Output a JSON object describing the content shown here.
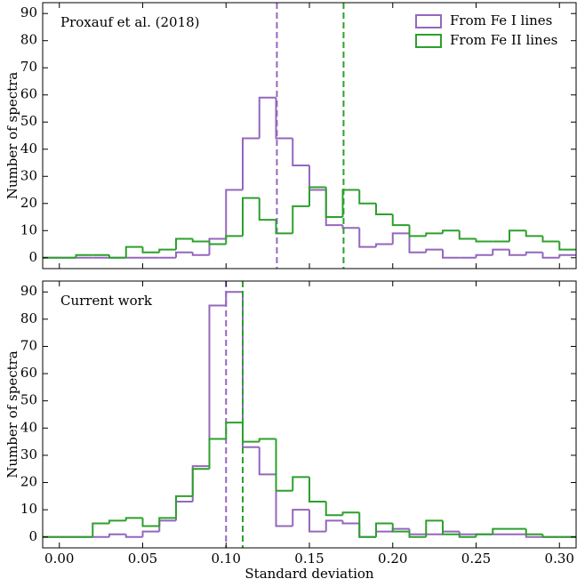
{
  "chart_data": [
    {
      "type": "histogram",
      "annotation": "Proxauf et al. (2018)",
      "ylabel": "Number of spectra",
      "bins": [
        -0.01,
        0.0,
        0.01,
        0.02,
        0.03,
        0.04,
        0.05,
        0.06,
        0.07,
        0.08,
        0.09,
        0.1,
        0.11,
        0.12,
        0.13,
        0.14,
        0.15,
        0.16,
        0.17,
        0.18,
        0.19,
        0.2,
        0.21,
        0.22,
        0.23,
        0.24,
        0.25,
        0.26,
        0.27,
        0.28,
        0.29,
        0.3,
        0.31
      ],
      "series": [
        {
          "name": "From Fe I lines",
          "color": "#9467bd",
          "values": [
            0,
            0,
            0,
            0,
            0,
            0,
            0,
            0,
            2,
            1,
            7,
            25,
            44,
            59,
            44,
            34,
            25,
            12,
            11,
            4,
            5,
            9,
            2,
            3,
            0,
            0,
            1,
            3,
            1,
            2,
            0,
            1
          ],
          "mean": 0.1305
        },
        {
          "name": "From Fe II lines",
          "color": "#2ca02c",
          "values": [
            0,
            0,
            1,
            1,
            0,
            4,
            2,
            3,
            7,
            6,
            5,
            8,
            22,
            14,
            9,
            19,
            26,
            15,
            25,
            20,
            16,
            12,
            8,
            9,
            10,
            7,
            6,
            6,
            10,
            8,
            6,
            3
          ],
          "mean": 0.1705
        }
      ],
      "xlim": [
        -0.01,
        0.31
      ],
      "xticks": [
        0,
        0.05,
        0.1,
        0.15,
        0.2,
        0.25,
        0.3
      ],
      "show_xticklabels": false,
      "ylim": [
        -4,
        94
      ],
      "yticks": [
        0,
        10,
        20,
        30,
        40,
        50,
        60,
        70,
        80,
        90
      ],
      "legend": "upper right"
    },
    {
      "type": "histogram",
      "annotation": "Current work",
      "ylabel": "Number of spectra",
      "xlabel": "Standard deviation",
      "bins": [
        -0.01,
        0.0,
        0.01,
        0.02,
        0.03,
        0.04,
        0.05,
        0.06,
        0.07,
        0.08,
        0.09,
        0.1,
        0.11,
        0.12,
        0.13,
        0.14,
        0.15,
        0.16,
        0.17,
        0.18,
        0.19,
        0.2,
        0.21,
        0.22,
        0.23,
        0.24,
        0.25,
        0.26,
        0.27,
        0.28,
        0.29,
        0.3,
        0.31
      ],
      "series": [
        {
          "color": "#9467bd",
          "values": [
            0,
            0,
            0,
            0,
            1,
            0,
            2,
            6,
            13,
            26,
            85,
            90,
            33,
            23,
            4,
            10,
            2,
            6,
            5,
            0,
            2,
            3,
            1,
            1,
            2,
            1,
            1,
            1,
            1,
            0,
            0,
            0
          ],
          "mean": 0.1
        },
        {
          "color": "#2ca02c",
          "values": [
            0,
            0,
            0,
            5,
            6,
            7,
            4,
            7,
            15,
            25,
            36,
            42,
            35,
            36,
            17,
            22,
            13,
            8,
            9,
            0,
            5,
            2,
            0,
            6,
            1,
            0,
            1,
            3,
            3,
            1,
            0,
            0
          ],
          "mean": 0.11
        }
      ],
      "xlim": [
        -0.01,
        0.31
      ],
      "xticks": [
        {
          "value": 0,
          "label": "0.00"
        },
        {
          "value": 0.05,
          "label": "0.05"
        },
        {
          "value": 0.1,
          "label": "0.10"
        },
        {
          "value": 0.15,
          "label": "0.15"
        },
        {
          "value": 0.2,
          "label": "0.20"
        },
        {
          "value": 0.25,
          "label": "0.25"
        },
        {
          "value": 0.3,
          "label": "0.30"
        }
      ],
      "show_xticklabels": true,
      "ylim": [
        -4,
        94
      ],
      "yticks": [
        0,
        10,
        20,
        30,
        40,
        50,
        60,
        70,
        80,
        90
      ]
    }
  ]
}
